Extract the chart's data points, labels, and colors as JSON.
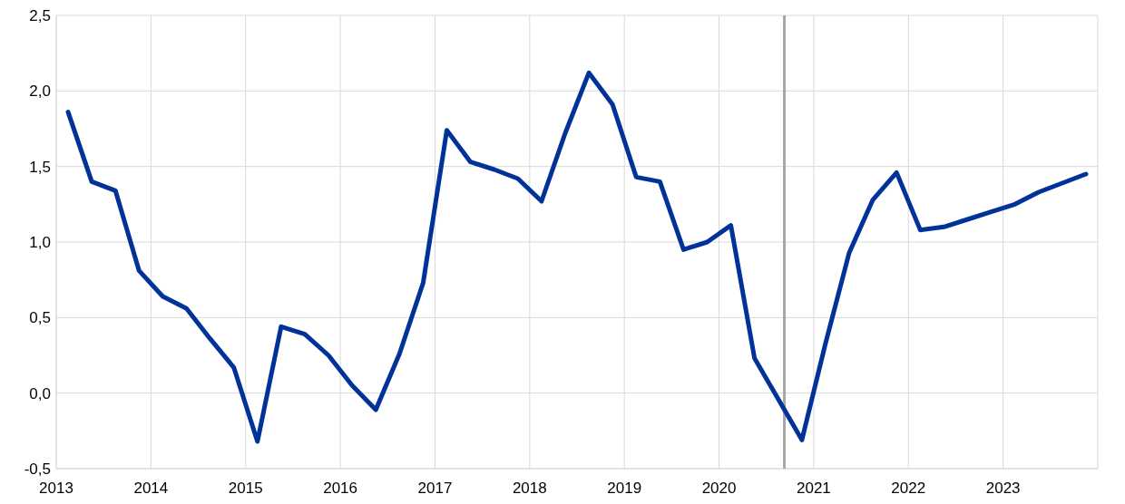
{
  "chart_data": {
    "type": "line",
    "x": [
      2013.125,
      2013.375,
      2013.625,
      2013.875,
      2014.125,
      2014.375,
      2014.625,
      2014.875,
      2015.125,
      2015.375,
      2015.625,
      2015.875,
      2016.125,
      2016.375,
      2016.625,
      2016.875,
      2017.125,
      2017.375,
      2017.625,
      2017.875,
      2018.125,
      2018.375,
      2018.625,
      2018.875,
      2019.125,
      2019.375,
      2019.625,
      2019.875,
      2020.125,
      2020.375,
      2020.625,
      2020.875,
      2021.125,
      2021.375,
      2021.625,
      2021.875,
      2022.125,
      2022.375,
      2022.625,
      2022.875,
      2023.125,
      2023.375,
      2023.625,
      2023.875
    ],
    "series": [
      {
        "color": "#003299",
        "values": [
          1.86,
          1.4,
          1.34,
          0.81,
          0.64,
          0.56,
          0.36,
          0.17,
          -0.32,
          0.44,
          0.39,
          0.25,
          0.05,
          -0.11,
          0.26,
          0.73,
          1.74,
          1.53,
          1.48,
          1.42,
          1.27,
          1.72,
          2.12,
          1.91,
          1.43,
          1.4,
          0.95,
          1.0,
          1.11,
          0.23,
          -0.04,
          -0.31,
          0.33,
          0.93,
          1.28,
          1.46,
          1.08,
          1.1,
          1.15,
          1.2,
          1.25,
          1.33,
          1.39,
          1.45
        ]
      }
    ],
    "xlim": [
      2013,
      2024
    ],
    "xticks": [
      2013,
      2014,
      2015,
      2016,
      2017,
      2018,
      2019,
      2020,
      2021,
      2022,
      2023,
      {
        "value": 2024,
        "label": null
      }
    ],
    "ylim": [
      -0.5,
      2.5
    ],
    "yticks": [
      {
        "value": -0.5,
        "label": "-0,5"
      },
      {
        "value": 0,
        "label": "0,0"
      },
      {
        "value": 0.5,
        "label": "0,5"
      },
      {
        "value": 1,
        "label": "1,0"
      },
      {
        "value": 1.5,
        "label": "1,5"
      },
      {
        "value": 2,
        "label": "2,0"
      },
      {
        "value": 2.5,
        "label": "2,5"
      }
    ],
    "ref_lines": [
      {
        "axis": "x",
        "value": 2020.69,
        "color": "#a6a6a6"
      }
    ],
    "grid": true,
    "marker": "none",
    "line_style": "solid"
  }
}
